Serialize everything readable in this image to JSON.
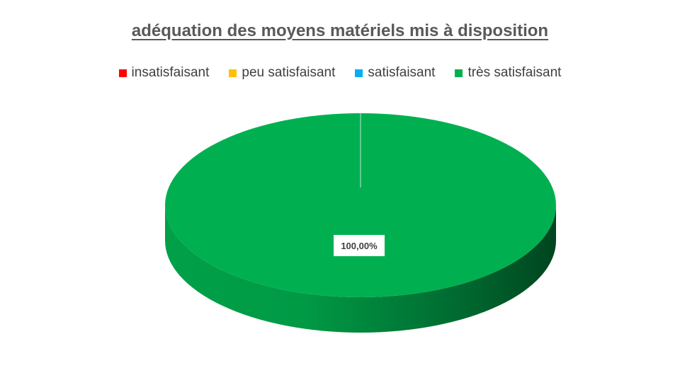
{
  "chart_data": {
    "type": "pie",
    "title": "adéquation des moyens matériels mis à disposition",
    "legend_position": "top",
    "categories": [
      "insatisfaisant",
      "peu satisfaisant",
      "satisfaisant",
      "très satisfaisant"
    ],
    "values": [
      0,
      0,
      0,
      100
    ],
    "data_labels": [
      "",
      "",
      "",
      "100,00%"
    ],
    "colors": [
      "#ff0000",
      "#ffc000",
      "#00b0f0",
      "#00b050"
    ],
    "style": "3d"
  }
}
